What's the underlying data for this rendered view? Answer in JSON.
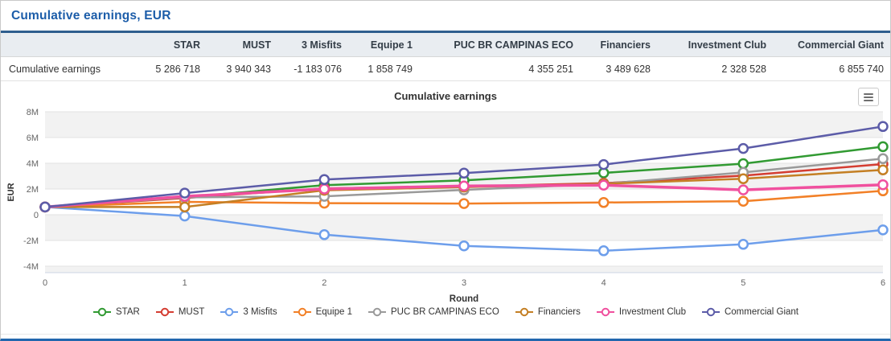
{
  "page": {
    "title": "Cumulative earnings, EUR"
  },
  "table": {
    "row_label": "Cumulative earnings",
    "columns": [
      "STAR",
      "MUST",
      "3 Misfits",
      "Equipe 1",
      "PUC BR CAMPINAS ECO",
      "Financiers",
      "Investment Club",
      "Commercial Giant"
    ],
    "values": [
      "5 286 718",
      "3 940 343",
      "-1 183 076",
      "1 858 749",
      "4 355 251",
      "3 489 628",
      "2 328 528",
      "6 855 740"
    ]
  },
  "chart": {
    "title": "Cumulative earnings",
    "export_icon": "hamburger-menu-icon"
  },
  "colors": {
    "panel_title": "#1c5da9",
    "table_rule": "#2e5e8e",
    "band_gray": "#f2f2f2",
    "grid": "#e2e2e2",
    "axis_line": "#ccd6e4",
    "tick_text": "#666666",
    "axis_title_text": "#333333"
  },
  "chart_data": {
    "type": "line",
    "title": "Cumulative earnings",
    "xlabel": "Round",
    "ylabel": "EUR",
    "x": [
      0,
      1,
      2,
      3,
      4,
      5,
      6
    ],
    "xtick_labels": [
      "0",
      "1",
      "2",
      "3",
      "4",
      "5",
      "6"
    ],
    "ylim": [
      -4000000,
      8000000
    ],
    "yticks": [
      {
        "value": 8000000,
        "label": "8M"
      },
      {
        "value": 6000000,
        "label": "6M"
      },
      {
        "value": 4000000,
        "label": "4M"
      },
      {
        "value": 2000000,
        "label": "2M"
      },
      {
        "value": 0,
        "label": "0"
      },
      {
        "value": -2000000,
        "label": "-2M"
      },
      {
        "value": -4000000,
        "label": "-4M"
      }
    ],
    "grid": true,
    "alternate_band_fill": true,
    "legend_position": "bottom",
    "marker": "open-circle",
    "series": [
      {
        "name": "STAR",
        "color": "#319a32",
        "line_width": 2.5,
        "values": [
          600000,
          1350000,
          2300000,
          2670000,
          3250000,
          3970000,
          5286718
        ]
      },
      {
        "name": "MUST",
        "color": "#d43d32",
        "line_width": 2.5,
        "values": [
          600000,
          1300000,
          2050000,
          2200000,
          2450000,
          3040000,
          3940343
        ]
      },
      {
        "name": "3 Misfits",
        "color": "#6d9eeb",
        "line_width": 2.5,
        "values": [
          600000,
          -100000,
          -1550000,
          -2420000,
          -2800000,
          -2300000,
          -1183076
        ]
      },
      {
        "name": "Equipe 1",
        "color": "#f28027",
        "line_width": 2.5,
        "values": [
          600000,
          1000000,
          900000,
          870000,
          950000,
          1050000,
          1858749
        ]
      },
      {
        "name": "PUC BR CAMPINAS ECO",
        "color": "#9a9a9a",
        "line_width": 2.5,
        "values": [
          600000,
          1350000,
          1430000,
          1930000,
          2400000,
          3290000,
          4355251
        ]
      },
      {
        "name": "Financiers",
        "color": "#c47f24",
        "line_width": 2.5,
        "values": [
          600000,
          600000,
          1900000,
          2150000,
          2400000,
          2800000,
          3489628
        ]
      },
      {
        "name": "Investment Club",
        "color": "#f0509e",
        "line_width": 3.5,
        "values": [
          600000,
          1430000,
          2000000,
          2240000,
          2300000,
          1930000,
          2328528
        ]
      },
      {
        "name": "Commercial Giant",
        "color": "#5c5ca8",
        "line_width": 2.5,
        "values": [
          600000,
          1680000,
          2730000,
          3230000,
          3900000,
          5150000,
          6855740
        ]
      }
    ]
  }
}
